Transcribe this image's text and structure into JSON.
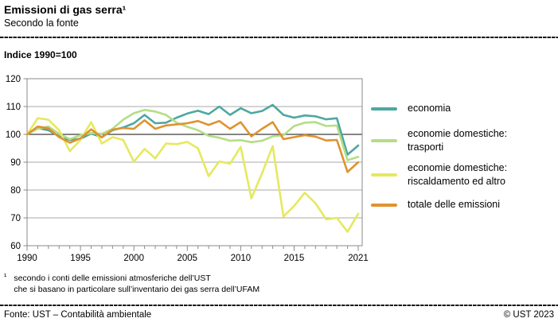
{
  "header": {
    "title": "Emissioni di gas serra¹",
    "subtitle": "Secondo la fonte"
  },
  "index_note": "Indice 1990=100",
  "chart_data": {
    "type": "line",
    "title": "Emissioni di gas serra¹",
    "subtitle": "Secondo la fonte",
    "index_note": "Indice 1990=100",
    "grid": true,
    "legend_position": "right",
    "ylim": [
      60,
      120
    ],
    "y_ticks": [
      60,
      70,
      80,
      90,
      100,
      110,
      120
    ],
    "x_ticks": [
      1990,
      1995,
      2000,
      2005,
      2010,
      2015,
      2021
    ],
    "reference_line": 100,
    "x_values": [
      1990,
      1991,
      1992,
      1993,
      1994,
      1995,
      1996,
      1997,
      1998,
      1999,
      2000,
      2001,
      2002,
      2003,
      2004,
      2005,
      2006,
      2007,
      2008,
      2009,
      2010,
      2011,
      2012,
      2013,
      2014,
      2015,
      2016,
      2017,
      2018,
      2019,
      2020,
      2021
    ],
    "series": [
      {
        "name": "economia",
        "color": "#4da8a0",
        "values": [
          100,
          102.3,
          101.5,
          99.3,
          98,
          98.4,
          100.3,
          99,
          101.5,
          102.5,
          104,
          107,
          104,
          104.2,
          106,
          107.5,
          108.5,
          107.3,
          110,
          107,
          109.4,
          107.6,
          108.4,
          110.6,
          107,
          106,
          106.8,
          106.5,
          105.4,
          105.8,
          92.7,
          96
        ]
      },
      {
        "name": "economie domestiche:\ntrasporti",
        "color": "#b5dd86",
        "values": [
          100,
          102,
          102.8,
          100.2,
          98.3,
          99.7,
          100.5,
          100.2,
          102,
          105.3,
          107.6,
          108.8,
          108.2,
          107,
          104.2,
          102.7,
          101.5,
          99.5,
          98.8,
          97.7,
          97.9,
          97.2,
          97.7,
          99.3,
          99.7,
          103,
          104.2,
          104.4,
          103,
          103.2,
          90.7,
          91.9
        ]
      },
      {
        "name": "economie domestiche:\nriscaldamento ed altro",
        "color": "#e5e95e",
        "values": [
          100,
          105.8,
          105.3,
          101.5,
          94,
          98,
          104.4,
          96.7,
          99,
          98,
          90.2,
          94.8,
          91.4,
          96.7,
          96.5,
          97.3,
          95,
          85,
          90.3,
          89.5,
          95.5,
          77,
          86,
          95.8,
          70.5,
          74.3,
          79,
          75.3,
          69.5,
          70,
          65,
          71.5
        ]
      },
      {
        "name": "totale delle emissioni",
        "color": "#e0922f",
        "values": [
          100,
          102.8,
          102.2,
          99,
          97,
          98.6,
          101.8,
          98.9,
          101.7,
          102.3,
          102,
          105.1,
          102,
          103.2,
          103.6,
          104,
          104.8,
          103.4,
          104.8,
          102,
          104.4,
          99.3,
          102,
          104.4,
          98.3,
          99,
          99.7,
          99.2,
          97.8,
          98,
          86.5,
          90
        ]
      }
    ],
    "colors": {
      "grid": "#a8a8a8",
      "plot_border": "#8a8a8a",
      "reference_line": "#3c3c3c"
    }
  },
  "footnote": {
    "marker": "¹",
    "lines": [
      "secondo i conti delle emissioni atmosferiche dell’UST",
      "che si basano in particolare sull’inventario dei gas serra dell’UFAM"
    ]
  },
  "footer": {
    "source": "Fonte: UST – Contabilità ambientale",
    "copyright": "© UST 2023"
  }
}
